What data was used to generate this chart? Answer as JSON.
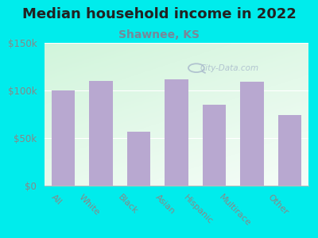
{
  "title": "Median household income in 2022",
  "subtitle": "Shawnee, KS",
  "categories": [
    "All",
    "White",
    "Black",
    "Asian",
    "Hispanic",
    "Multirace",
    "Other"
  ],
  "values": [
    100000,
    110000,
    57000,
    112000,
    85000,
    109000,
    74000
  ],
  "bar_color": "#b8a8d0",
  "background_outer": "#00ecec",
  "background_inner": "#e8f5e8",
  "title_color": "#222222",
  "subtitle_color": "#778899",
  "tick_label_color": "#888888",
  "ytick_labels": [
    "$0",
    "$50k",
    "$100k",
    "$150k"
  ],
  "ytick_values": [
    0,
    50000,
    100000,
    150000
  ],
  "ylim": [
    0,
    150000
  ],
  "watermark": "City-Data.com",
  "title_fontsize": 13,
  "subtitle_fontsize": 10,
  "xlabel_rotation": -45
}
